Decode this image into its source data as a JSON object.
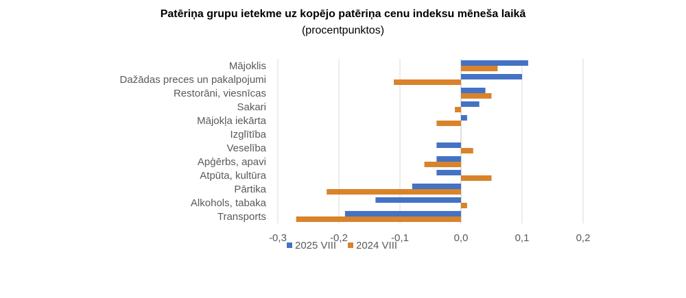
{
  "title": "Patēriņa grupu ietekme uz kopējo patēriņa cenu indeksu mēneša laikā",
  "subtitle": "(procentpunktos)",
  "colors": {
    "series_2025": "#4472C4",
    "series_2024": "#D9832B",
    "grid": "#D9D9D9",
    "axis": "#BFBFBF"
  },
  "chart_data": {
    "type": "bar",
    "orientation": "horizontal",
    "title": "Patēriņa grupu ietekme uz kopējo patēriņa cenu indeksu mēneša laikā",
    "subtitle": "(procentpunktos)",
    "categories": [
      "Mājoklis",
      "Dažādas preces un pakalpojumi",
      "Restorāni, viesnīcas",
      "Sakari",
      "Mājokļa iekārta",
      "Izglītība",
      "Veselība",
      "Apģērbs, apavi",
      "Atpūta, kultūra",
      "Pārtika",
      "Alkohols, tabaka",
      "Transports"
    ],
    "series": [
      {
        "name": "2025 VIII",
        "values": [
          0.11,
          0.1,
          0.04,
          0.03,
          0.01,
          0.0,
          -0.04,
          -0.04,
          -0.04,
          -0.08,
          -0.14,
          -0.19
        ]
      },
      {
        "name": "2024 VIII",
        "values": [
          0.06,
          -0.11,
          0.05,
          -0.01,
          -0.04,
          0.0,
          0.02,
          -0.06,
          0.05,
          -0.22,
          0.01,
          -0.27
        ]
      }
    ],
    "xlim": [
      -0.3,
      0.2
    ],
    "xticks": [
      "-0,3",
      "-0,2",
      "-0,1",
      "0,0",
      "0,1",
      "0,2"
    ],
    "xtick_values": [
      -0.3,
      -0.2,
      -0.1,
      0.0,
      0.1,
      0.2
    ],
    "grid": true,
    "legend_position": "bottom"
  }
}
